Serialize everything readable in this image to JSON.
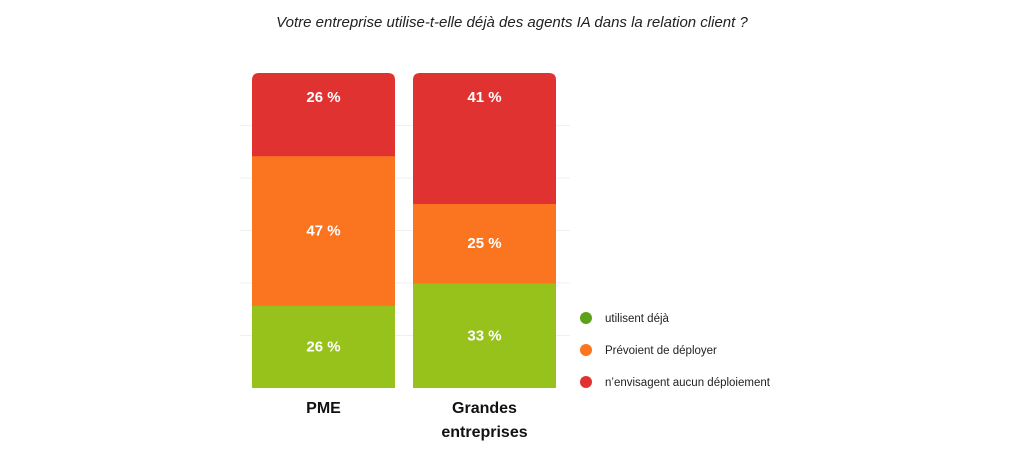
{
  "chart_data": {
    "type": "bar",
    "stacked": true,
    "title": "Votre entreprise utilise-t-elle déjà des agents IA dans la relation client ?",
    "categories": [
      {
        "label_lines": [
          "PME"
        ]
      },
      {
        "label_lines": [
          "Grandes",
          "entreprises"
        ]
      }
    ],
    "series": [
      {
        "name": "utilisent déjà",
        "color": "#97c21c",
        "values": [
          26,
          33
        ],
        "labels": [
          "26 %",
          "33 %"
        ]
      },
      {
        "name": "Prévoient de déployer",
        "color": "#fb7420",
        "values": [
          47,
          25
        ],
        "labels": [
          "47 %",
          "25 %"
        ]
      },
      {
        "name": "n’envisagent aucun déploiement",
        "color": "#e13232",
        "values": [
          26,
          41
        ],
        "labels": [
          "26 %",
          "41 %"
        ]
      }
    ],
    "legend": {
      "position": "right",
      "items": [
        {
          "label": "utilisent déjà",
          "color": "#5ea21c"
        },
        {
          "label": "Prévoient de déployer",
          "color": "#fb7420"
        },
        {
          "label": "n’envisagent aucun déploiement",
          "color": "#e13232"
        }
      ]
    }
  }
}
